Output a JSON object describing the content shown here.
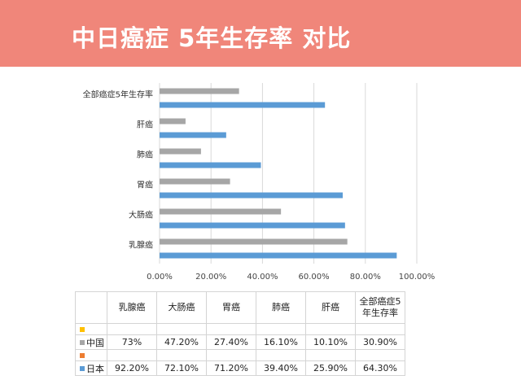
{
  "page": {
    "title": "中日癌症 5年生存率 对比"
  },
  "colors": {
    "banner": "#f0867a",
    "china": "#a6a6a6",
    "japan": "#5b9bd5",
    "yellow": "#ffc000",
    "orange": "#ed7d31"
  },
  "chart_data": {
    "type": "bar",
    "orientation": "horizontal",
    "categories": [
      "全部癌症5年生存率",
      "肝癌",
      "肺癌",
      "胃癌",
      "大肠癌",
      "乳腺癌"
    ],
    "series": [
      {
        "name": "中国",
        "values": [
          30.9,
          10.1,
          16.1,
          27.4,
          47.2,
          73.0
        ]
      },
      {
        "name": "日本",
        "values": [
          64.3,
          25.9,
          39.4,
          71.2,
          72.1,
          92.2
        ]
      }
    ],
    "xlim": [
      0,
      100
    ],
    "xticks": [
      "0.00%",
      "20.00%",
      "40.00%",
      "60.00%",
      "80.00%",
      "100.00%"
    ],
    "grid": true,
    "legend": "data-table"
  },
  "table": {
    "columns": [
      "乳腺癌",
      "大肠癌",
      "胃癌",
      "肺癌",
      "肝癌",
      "全部癌症5年生存率"
    ],
    "rows": [
      {
        "name": "中国",
        "values": [
          "73%",
          "47.20%",
          "27.40%",
          "16.10%",
          "10.10%",
          "30.90%"
        ]
      },
      {
        "name": "日本",
        "values": [
          "92.20%",
          "72.10%",
          "71.20%",
          "39.40%",
          "25.90%",
          "64.30%"
        ]
      }
    ]
  }
}
